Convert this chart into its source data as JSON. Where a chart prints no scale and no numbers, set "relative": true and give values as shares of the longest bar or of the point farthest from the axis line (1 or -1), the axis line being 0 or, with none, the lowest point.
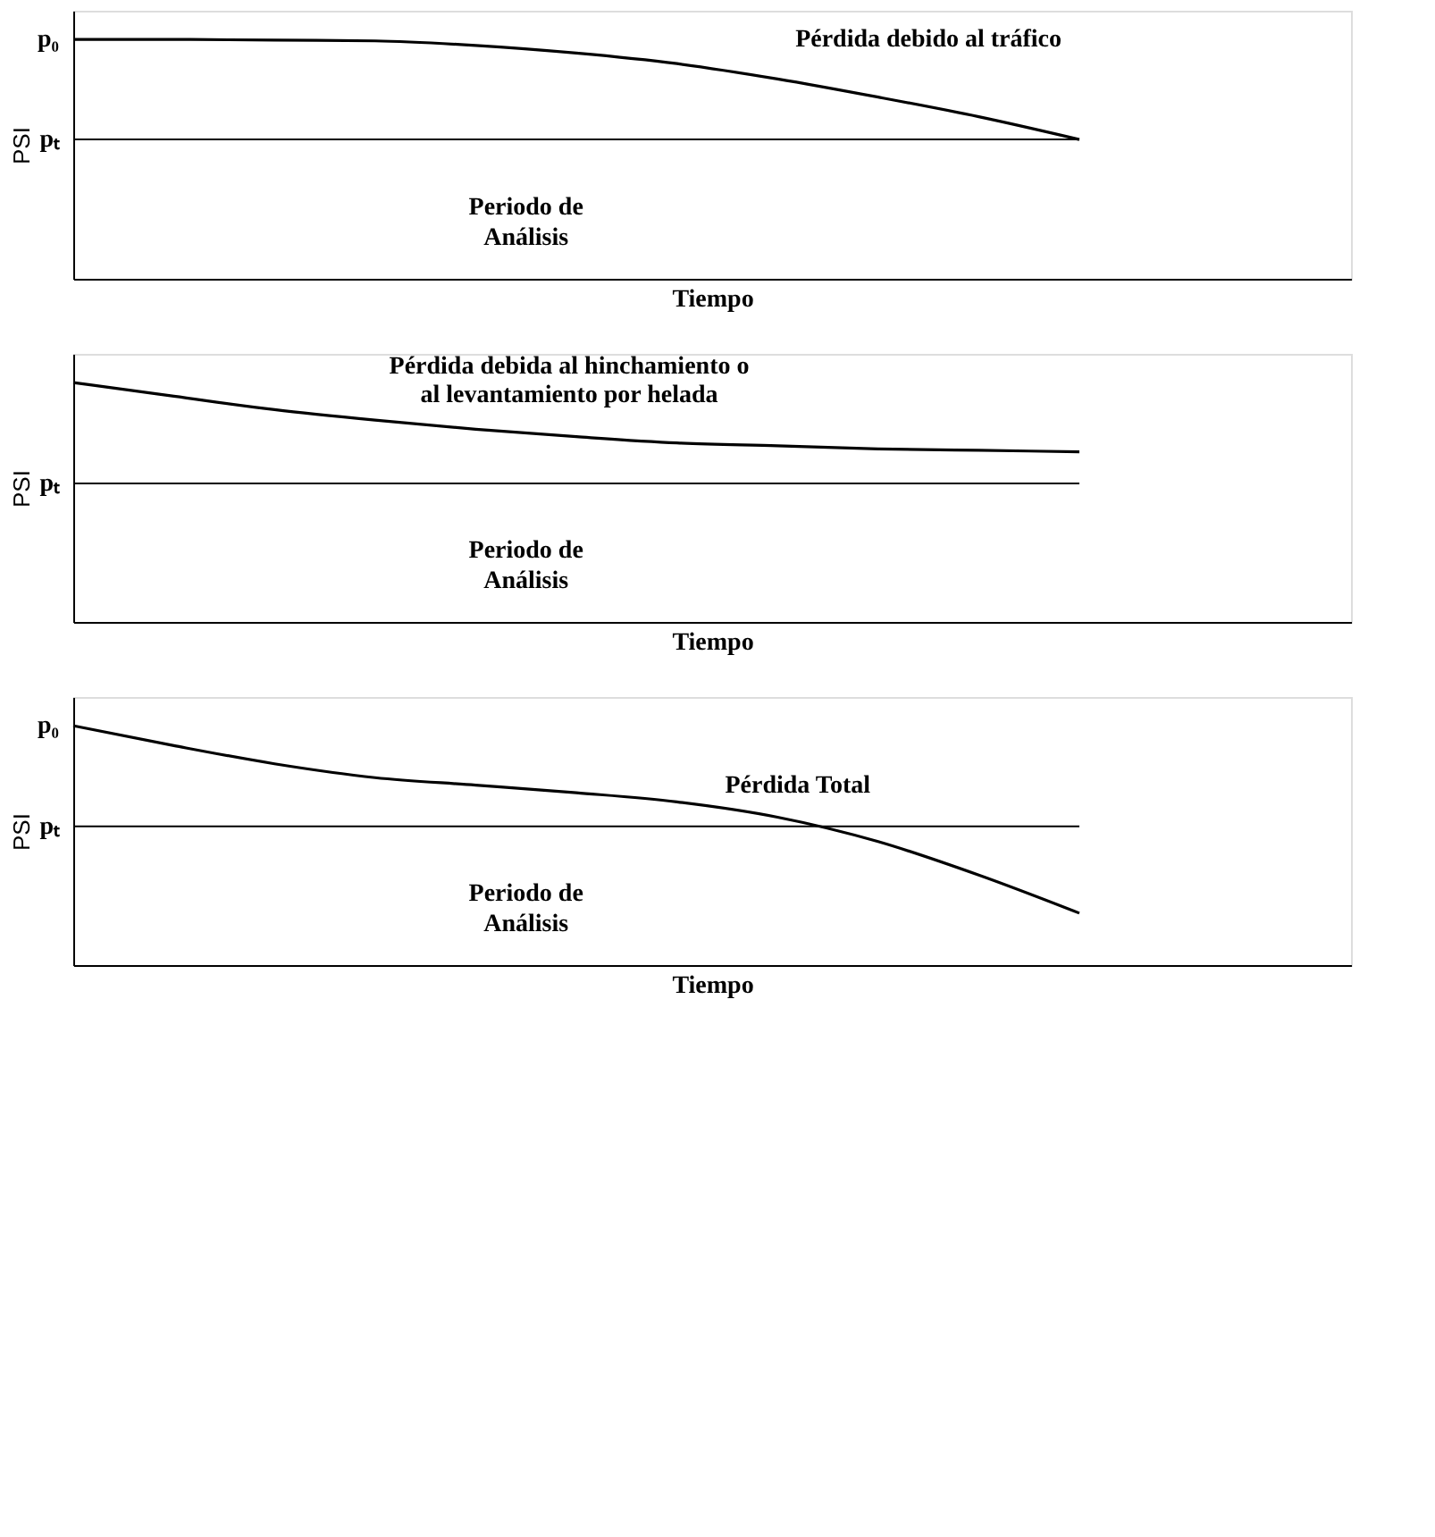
{
  "chart_data": [
    {
      "type": "line",
      "relative": true,
      "xlabel": "Tiempo",
      "ylabel": "PSI",
      "categories": [
        null,
        null,
        null,
        null,
        null,
        null,
        null,
        null,
        null,
        null,
        null
      ],
      "series": [
        {
          "color": "#000000",
          "values": [
            1,
            1,
            0.997,
            0.994,
            0.975,
            0.943,
            0.899,
            0.835,
            0.759,
            0.677,
            0.582
          ]
        }
      ],
      "ref_lines": [
        {
          "axis": "y",
          "value": 0.582,
          "label": "pₜ",
          "color": "#000000"
        }
      ],
      "annotations": [
        "p₀",
        "Pérdida debido al tráfico",
        "Periodo de Análisis"
      ]
    },
    {
      "type": "line",
      "relative": true,
      "title": "Pérdida debida al hinchamiento o al levantamiento por helada",
      "xlabel": "Tiempo",
      "ylabel": "PSI",
      "categories": [
        null,
        null,
        null,
        null,
        null,
        null,
        null,
        null,
        null,
        null,
        null
      ],
      "series": [
        {
          "color": "#000000",
          "values": [
            1,
            0.943,
            0.887,
            0.843,
            0.805,
            0.774,
            0.748,
            0.736,
            0.723,
            0.717,
            0.711
          ]
        }
      ],
      "ref_lines": [
        {
          "axis": "y",
          "value": 0.579,
          "label": "pₜ",
          "color": "#000000"
        }
      ],
      "annotations": [
        "Periodo de Análisis"
      ]
    },
    {
      "type": "line",
      "relative": true,
      "xlabel": "Tiempo",
      "ylabel": "PSI",
      "categories": [
        null,
        null,
        null,
        null,
        null,
        null,
        null,
        null,
        null,
        null,
        null
      ],
      "series": [
        {
          "color": "#000000",
          "values": [
            1,
            0.917,
            0.841,
            0.783,
            0.752,
            0.72,
            0.682,
            0.618,
            0.516,
            0.376,
            0.217
          ]
        }
      ],
      "ref_lines": [
        {
          "axis": "y",
          "value": 0.58,
          "label": "pₜ",
          "color": "#000000"
        }
      ],
      "annotations": [
        "p₀",
        "Pérdida Total",
        "Periodo de Análisis"
      ]
    }
  ]
}
